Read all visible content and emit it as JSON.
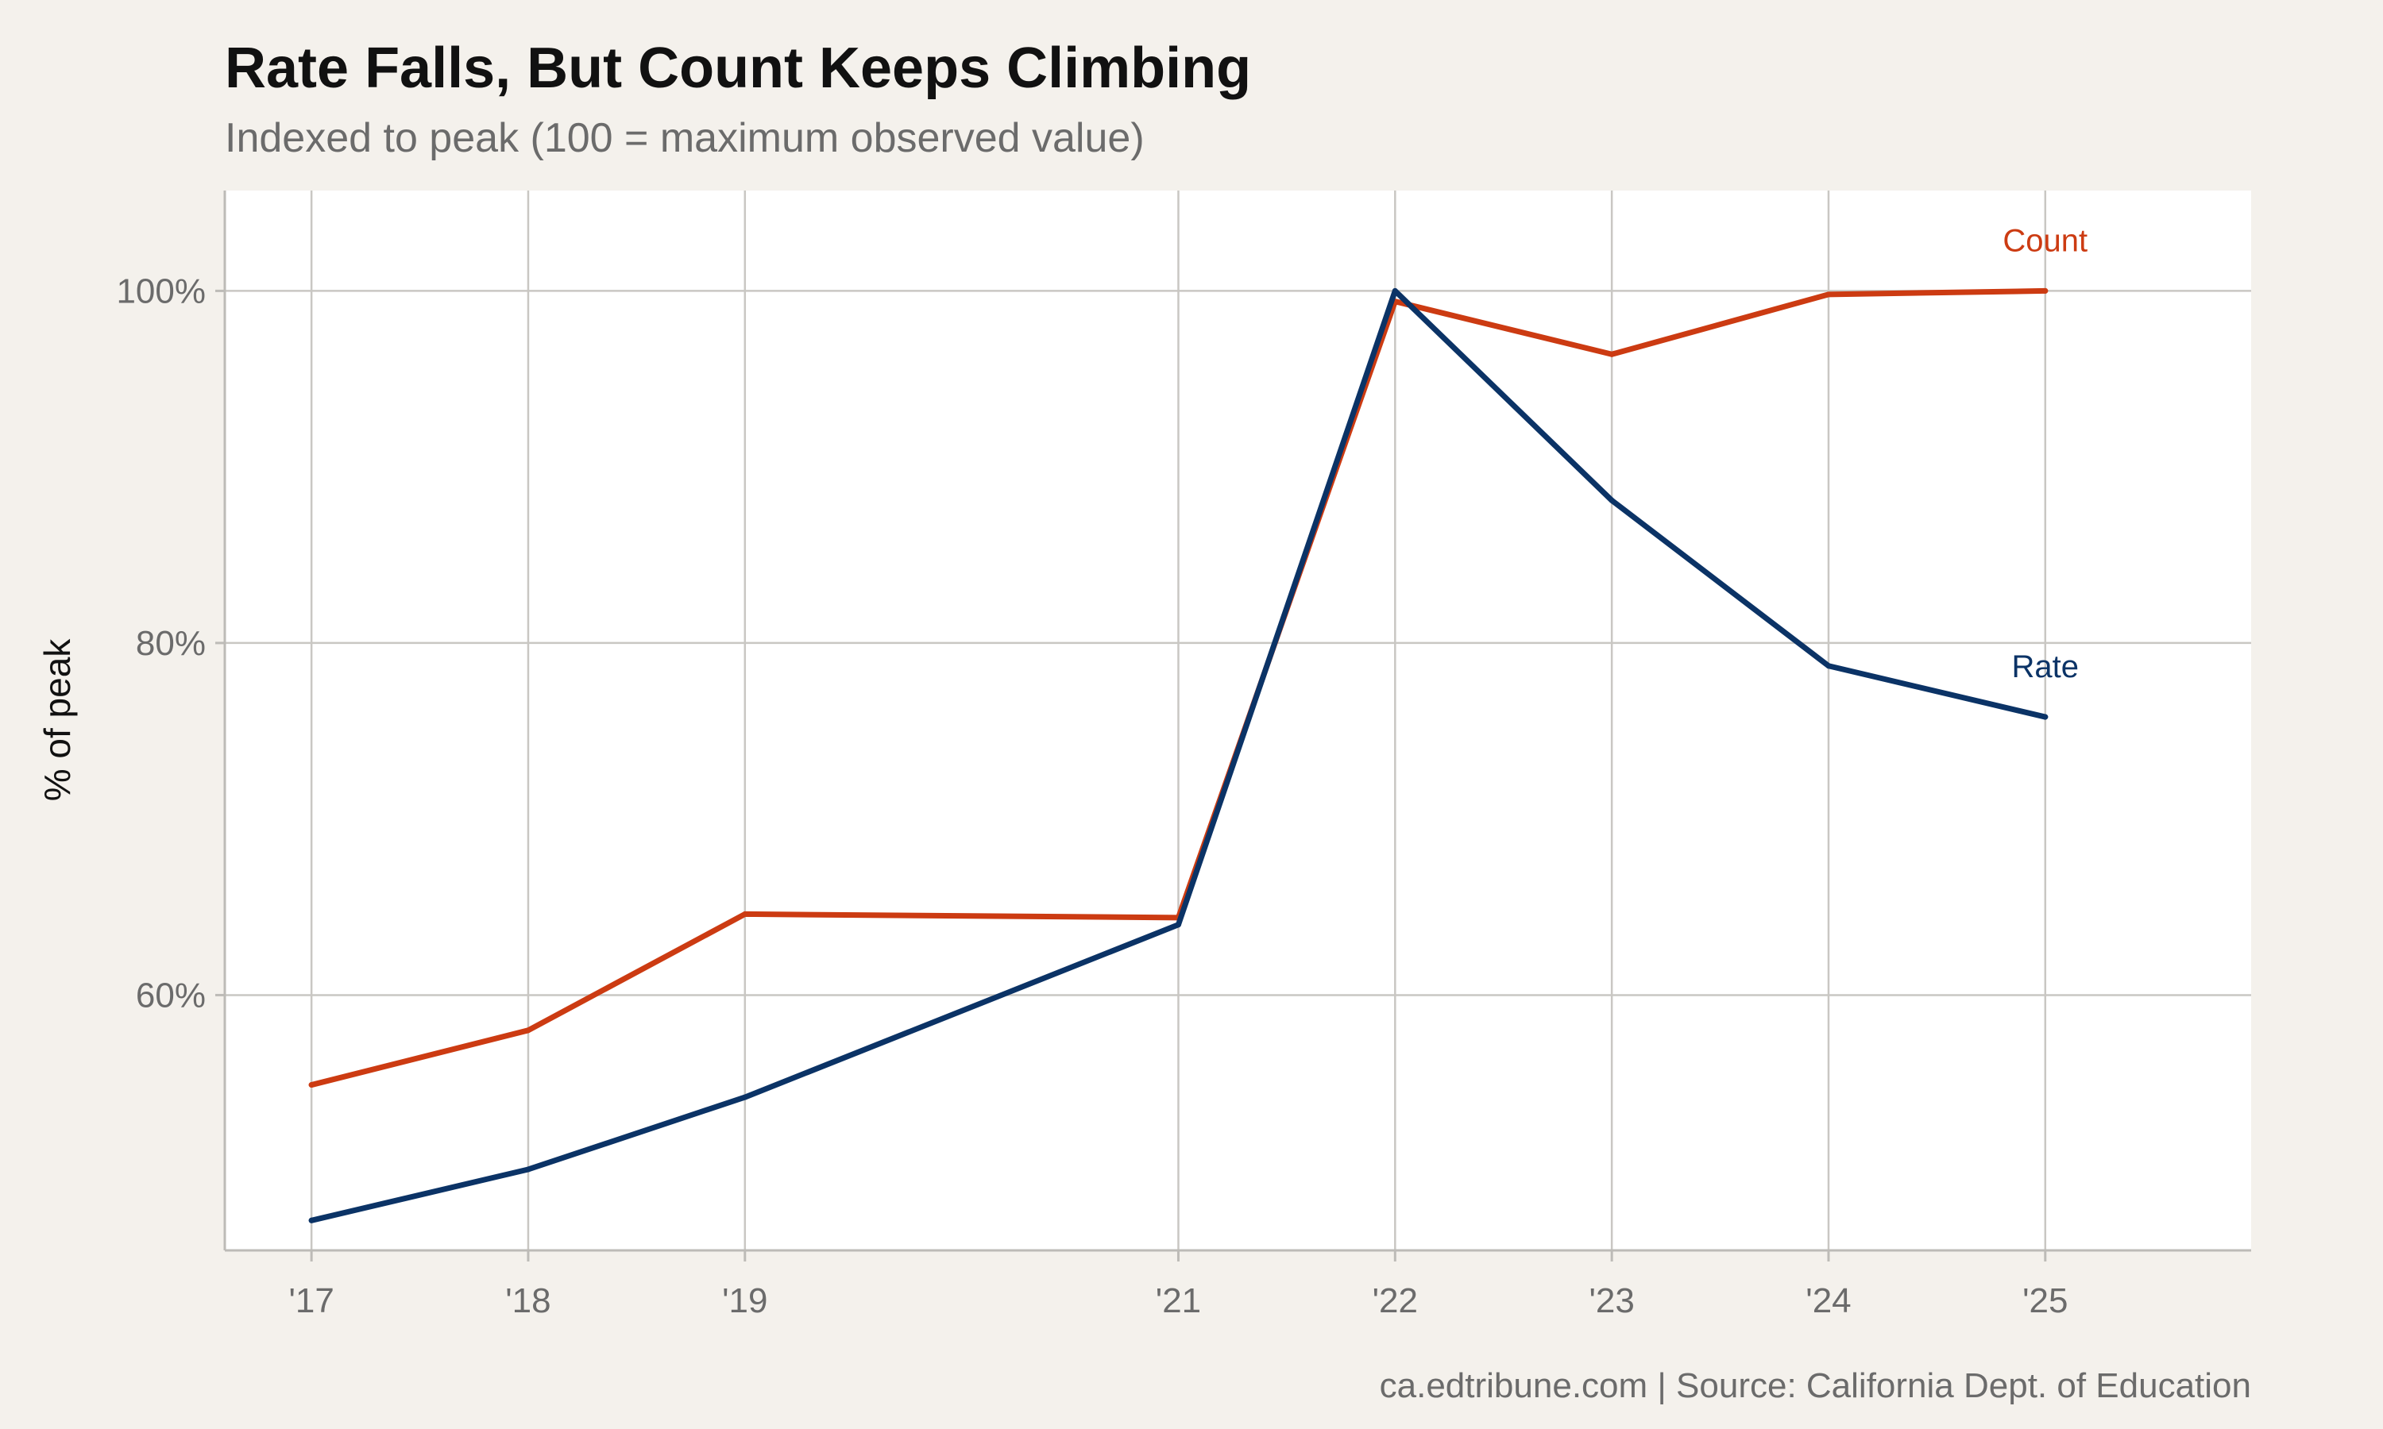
{
  "chart_data": {
    "type": "line",
    "title": "Rate Falls, But Count Keeps Climbing",
    "subtitle": "Indexed to peak (100 = maximum observed value)",
    "ylabel": "% of peak",
    "xlabel": "",
    "x": [
      2017,
      2018,
      2019,
      2021,
      2022,
      2023,
      2024,
      2025
    ],
    "x_tick_labels": [
      "'17",
      "'18",
      "'19",
      "'21",
      "'22",
      "'23",
      "'24",
      "'25"
    ],
    "xlim": [
      2016.6,
      2025.95
    ],
    "ylim": [
      45.5,
      105.7
    ],
    "y_ticks": [
      60,
      80,
      100
    ],
    "y_tick_labels": [
      "60%",
      "80%",
      "100%"
    ],
    "grid": true,
    "series": [
      {
        "name": "Count",
        "color": "#cc3b12",
        "values": [
          54.9,
          58.0,
          64.6,
          64.4,
          99.4,
          96.4,
          99.8,
          100.0
        ]
      },
      {
        "name": "Rate",
        "color": "#0b3366",
        "values": [
          47.2,
          50.1,
          54.2,
          64.0,
          100.0,
          88.1,
          78.7,
          75.8
        ]
      }
    ],
    "caption": "ca.edtribune.com | Source: California Dept. of Education"
  }
}
